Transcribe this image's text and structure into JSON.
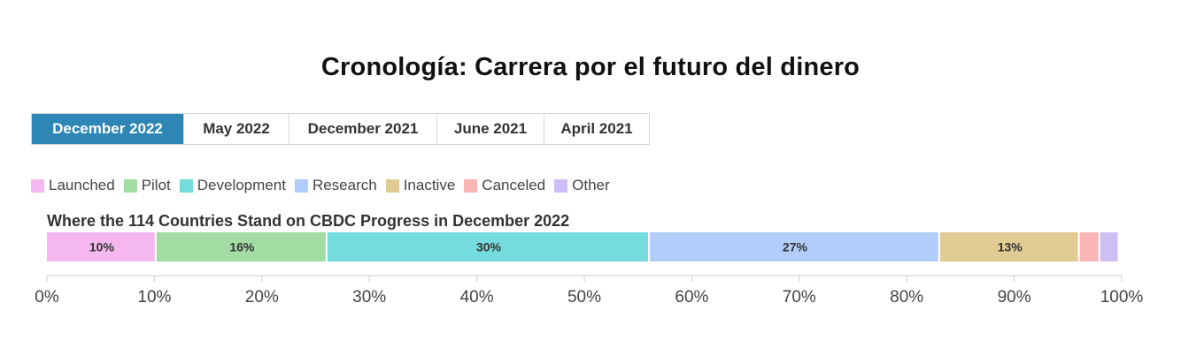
{
  "title": "Cronología: Carrera por el futuro del dinero",
  "tabs": [
    {
      "label": "December 2022",
      "active": true
    },
    {
      "label": "May 2022",
      "active": false
    },
    {
      "label": "December 2021",
      "active": false
    },
    {
      "label": "June 2021",
      "active": false
    },
    {
      "label": "April 2021",
      "active": false
    }
  ],
  "colors": {
    "active_tab": "#2d86b3",
    "Launched": "#f4b8ee",
    "Pilot": "#a3dca3",
    "Development": "#74dcdc",
    "Research": "#b3cdfa",
    "Inactive": "#e0cb92",
    "Canceled": "#f9b5b5",
    "Other": "#cdbff4"
  },
  "chart_data": {
    "type": "bar",
    "orientation": "horizontal-stacked",
    "title": "Where the 114 Countries Stand on CBDC Progress in December 2022",
    "series": [
      {
        "name": "Launched",
        "value": 10.2,
        "label": "10%"
      },
      {
        "name": "Pilot",
        "value": 15.9,
        "label": "16%"
      },
      {
        "name": "Development",
        "value": 30.0,
        "label": "30%"
      },
      {
        "name": "Research",
        "value": 27.0,
        "label": "27%"
      },
      {
        "name": "Inactive",
        "value": 13.0,
        "label": "13%"
      },
      {
        "name": "Canceled",
        "value": 1.9,
        "label": ""
      },
      {
        "name": "Other",
        "value": 1.8,
        "label": ""
      }
    ],
    "xlim": [
      0,
      100
    ],
    "x_ticks": [
      "0%",
      "10%",
      "20%",
      "30%",
      "40%",
      "50%",
      "60%",
      "70%",
      "80%",
      "90%",
      "100%"
    ],
    "legend_position": "top-left"
  }
}
